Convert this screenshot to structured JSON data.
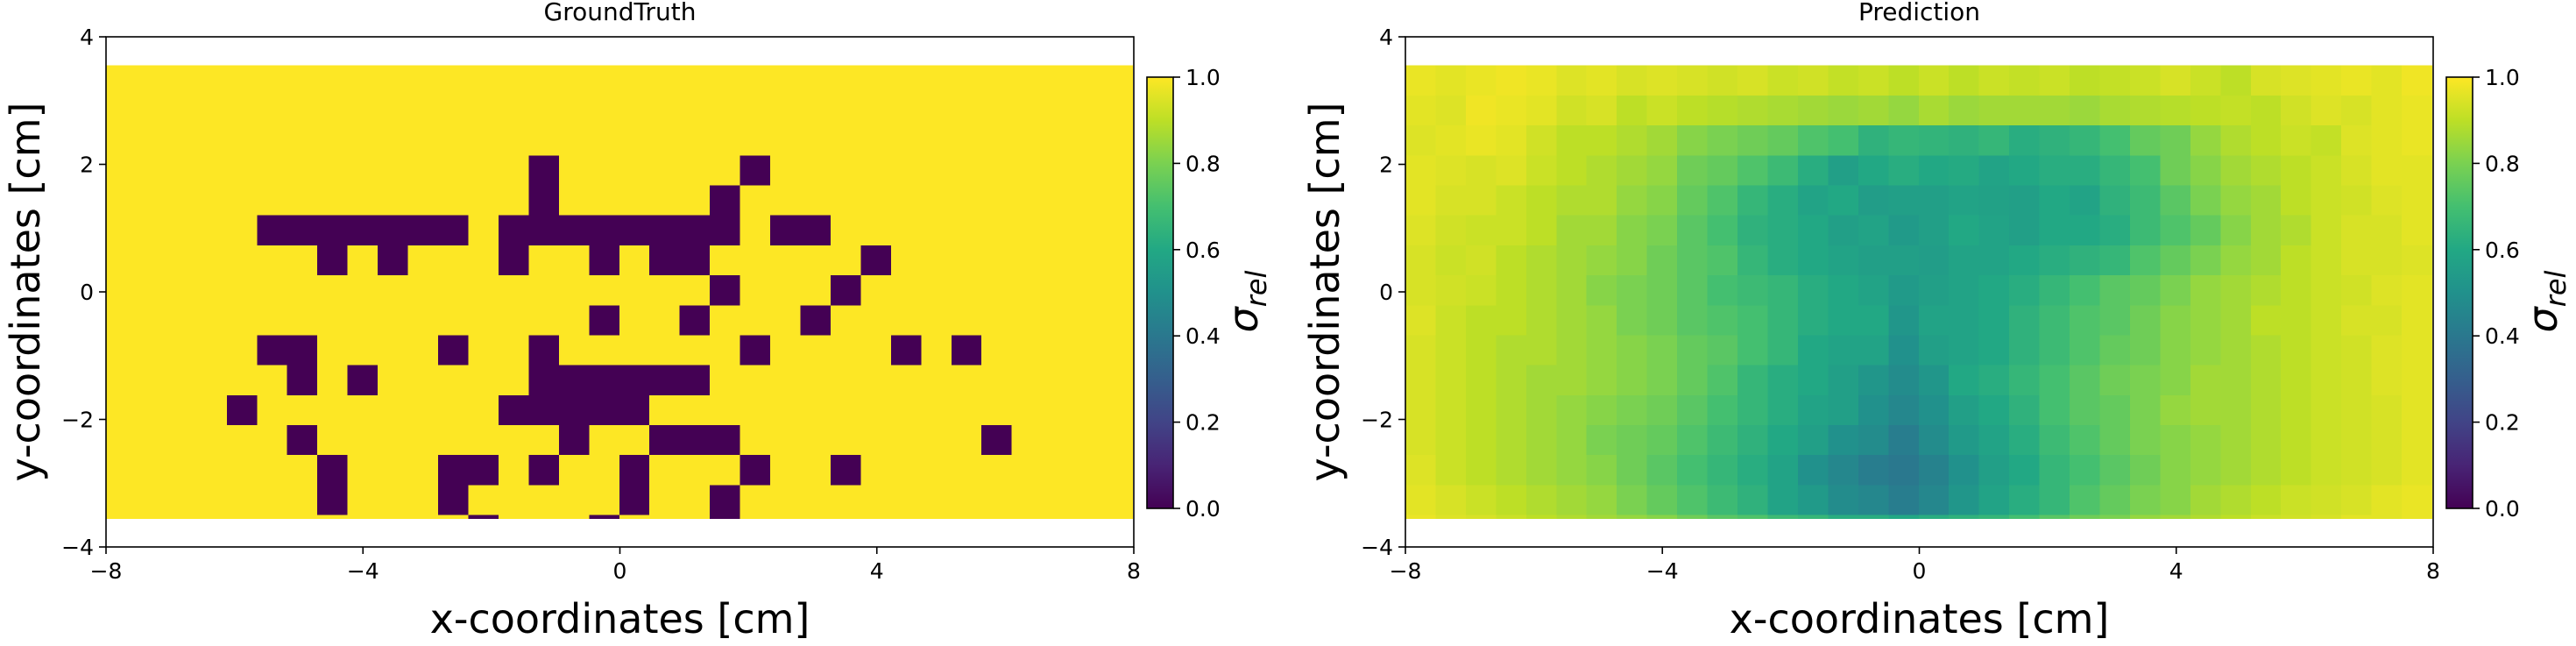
{
  "chart_data": [
    {
      "type": "heatmap",
      "title": "GroundTruth",
      "xlabel": "x-coordinates [cm]",
      "ylabel": "y-coordinates [cm]",
      "xlim": [
        -8,
        8
      ],
      "ylim": [
        -4,
        4
      ],
      "extent": [
        -8,
        8,
        -3.55,
        3.55
      ],
      "cell_size": 0.47,
      "xticks": [
        -8,
        -4,
        0,
        4,
        8
      ],
      "xtick_labels": [
        "−8",
        "−4",
        "0",
        "4",
        "8"
      ],
      "yticks": [
        -4,
        -2,
        0,
        2,
        4
      ],
      "ytick_labels": [
        "−4",
        "−2",
        "0",
        "2",
        "4"
      ],
      "colormap": "viridis",
      "colorbar": {
        "label": "σrel",
        "range": [
          0,
          1
        ],
        "ticks": [
          0.0,
          0.2,
          0.4,
          0.6,
          0.8,
          1.0
        ],
        "tick_labels": [
          "0.0",
          "0.2",
          "0.4",
          "0.6",
          "0.8",
          "1.0"
        ]
      },
      "values": [
        [
          1,
          1,
          1,
          1,
          1,
          1,
          1,
          1,
          1,
          1,
          1,
          1,
          1,
          1,
          1,
          1,
          1,
          1,
          1,
          1,
          1,
          1,
          1,
          1,
          1,
          1,
          1,
          1,
          1,
          1,
          1,
          1,
          1,
          1
        ],
        [
          1,
          1,
          1,
          1,
          1,
          1,
          1,
          1,
          1,
          1,
          1,
          1,
          1,
          1,
          1,
          1,
          1,
          1,
          1,
          1,
          1,
          1,
          1,
          1,
          1,
          1,
          1,
          1,
          1,
          1,
          1,
          1,
          1,
          1
        ],
        [
          1,
          1,
          1,
          1,
          1,
          1,
          1,
          1,
          1,
          1,
          1,
          1,
          1,
          1,
          1,
          1,
          1,
          1,
          1,
          1,
          1,
          1,
          1,
          1,
          1,
          1,
          1,
          1,
          1,
          1,
          1,
          1,
          1,
          1
        ],
        [
          1,
          1,
          1,
          1,
          1,
          1,
          1,
          1,
          1,
          1,
          1,
          1,
          1,
          1,
          0,
          1,
          1,
          1,
          1,
          1,
          1,
          0,
          1,
          1,
          1,
          1,
          1,
          1,
          1,
          1,
          1,
          1,
          1,
          1
        ],
        [
          1,
          1,
          1,
          1,
          1,
          1,
          1,
          1,
          1,
          1,
          1,
          1,
          1,
          1,
          0,
          1,
          1,
          1,
          1,
          1,
          0,
          1,
          1,
          1,
          1,
          1,
          1,
          1,
          1,
          1,
          1,
          1,
          1,
          1
        ],
        [
          1,
          1,
          1,
          1,
          1,
          0,
          0,
          0,
          0,
          0,
          0,
          0,
          1,
          0,
          0,
          0,
          0,
          0,
          0,
          0,
          0,
          1,
          0,
          0,
          1,
          1,
          1,
          1,
          1,
          1,
          1,
          1,
          1,
          1
        ],
        [
          1,
          1,
          1,
          1,
          1,
          1,
          1,
          0,
          1,
          0,
          1,
          1,
          1,
          0,
          1,
          1,
          0,
          1,
          0,
          0,
          1,
          1,
          1,
          1,
          1,
          0,
          1,
          1,
          1,
          1,
          1,
          1,
          1,
          1
        ],
        [
          1,
          1,
          1,
          1,
          1,
          1,
          1,
          1,
          1,
          1,
          1,
          1,
          1,
          1,
          1,
          1,
          1,
          1,
          1,
          1,
          0,
          1,
          1,
          1,
          0,
          1,
          1,
          1,
          1,
          1,
          1,
          1,
          1,
          1
        ],
        [
          1,
          1,
          1,
          1,
          1,
          1,
          1,
          1,
          1,
          1,
          1,
          1,
          1,
          1,
          1,
          1,
          0,
          1,
          1,
          0,
          1,
          1,
          1,
          0,
          1,
          1,
          1,
          1,
          1,
          1,
          1,
          1,
          1,
          1
        ],
        [
          1,
          1,
          1,
          1,
          1,
          0,
          0,
          1,
          1,
          1,
          1,
          0,
          1,
          1,
          0,
          1,
          1,
          1,
          1,
          1,
          1,
          0,
          1,
          1,
          1,
          1,
          0,
          1,
          0,
          1,
          1,
          1,
          1,
          1
        ],
        [
          1,
          1,
          1,
          1,
          1,
          1,
          0,
          1,
          0,
          1,
          1,
          1,
          1,
          1,
          0,
          0,
          0,
          0,
          0,
          0,
          1,
          1,
          1,
          1,
          1,
          1,
          1,
          1,
          1,
          1,
          1,
          1,
          1,
          1
        ],
        [
          1,
          1,
          1,
          1,
          0,
          1,
          1,
          1,
          1,
          1,
          1,
          1,
          1,
          0,
          0,
          0,
          0,
          0,
          1,
          1,
          1,
          1,
          1,
          1,
          1,
          1,
          1,
          1,
          1,
          1,
          1,
          1,
          1,
          1
        ],
        [
          1,
          1,
          1,
          1,
          1,
          1,
          0,
          1,
          1,
          1,
          1,
          1,
          1,
          1,
          1,
          0,
          1,
          1,
          0,
          0,
          0,
          1,
          1,
          1,
          1,
          1,
          1,
          1,
          1,
          0,
          1,
          1,
          1,
          1
        ],
        [
          1,
          1,
          1,
          1,
          1,
          1,
          1,
          0,
          1,
          1,
          1,
          0,
          0,
          1,
          0,
          1,
          1,
          0,
          1,
          1,
          1,
          0,
          1,
          1,
          0,
          1,
          1,
          1,
          1,
          1,
          1,
          1,
          1,
          1
        ],
        [
          1,
          1,
          1,
          1,
          1,
          1,
          1,
          0,
          1,
          1,
          1,
          0,
          1,
          1,
          1,
          1,
          1,
          0,
          1,
          1,
          0,
          1,
          1,
          1,
          1,
          1,
          1,
          1,
          1,
          1,
          1,
          1,
          1,
          1
        ],
        [
          1,
          1,
          1,
          1,
          1,
          1,
          1,
          1,
          1,
          1,
          1,
          1,
          0,
          1,
          1,
          1,
          0,
          1,
          1,
          1,
          0,
          1,
          1,
          1,
          1,
          1,
          1,
          1,
          1,
          1,
          1,
          1,
          1,
          1
        ],
        [
          1,
          1,
          1,
          1,
          1,
          1,
          1,
          1,
          1,
          1,
          1,
          1,
          1,
          1,
          1,
          1,
          1,
          1,
          1,
          1,
          1,
          1,
          1,
          1,
          1,
          1,
          1,
          1,
          1,
          1,
          1,
          1,
          1,
          1
        ]
      ]
    },
    {
      "type": "heatmap",
      "title": "Prediction",
      "xlabel": "x-coordinates [cm]",
      "ylabel": "y-coordinates [cm]",
      "xlim": [
        -8,
        8
      ],
      "ylim": [
        -4,
        4
      ],
      "extent": [
        -8,
        8,
        -3.55,
        3.55
      ],
      "cell_size": 0.47,
      "xticks": [
        -8,
        -4,
        0,
        4,
        8
      ],
      "xtick_labels": [
        "−8",
        "−4",
        "0",
        "4",
        "8"
      ],
      "yticks": [
        -4,
        -2,
        0,
        2,
        4
      ],
      "ytick_labels": [
        "−4",
        "−2",
        "0",
        "2",
        "4"
      ],
      "colormap": "viridis",
      "colorbar": {
        "label": "σrel",
        "range": [
          0,
          1
        ],
        "ticks": [
          0.0,
          0.2,
          0.4,
          0.6,
          0.8,
          1.0
        ],
        "tick_labels": [
          "0.0",
          "0.2",
          "0.4",
          "0.6",
          "0.8",
          "1.0"
        ]
      },
      "values": [
        [
          0.97,
          0.96,
          0.97,
          0.98,
          0.97,
          0.95,
          0.96,
          0.94,
          0.95,
          0.94,
          0.93,
          0.94,
          0.92,
          0.93,
          0.91,
          0.92,
          0.9,
          0.92,
          0.9,
          0.92,
          0.91,
          0.92,
          0.9,
          0.91,
          0.92,
          0.94,
          0.92,
          0.9,
          0.94,
          0.95,
          0.96,
          0.97,
          0.96,
          0.98
        ],
        [
          0.96,
          0.95,
          0.98,
          0.97,
          0.96,
          0.93,
          0.94,
          0.9,
          0.92,
          0.9,
          0.89,
          0.88,
          0.87,
          0.86,
          0.85,
          0.86,
          0.84,
          0.87,
          0.85,
          0.86,
          0.86,
          0.86,
          0.85,
          0.87,
          0.88,
          0.89,
          0.9,
          0.91,
          0.9,
          0.93,
          0.95,
          0.94,
          0.96,
          0.97
        ],
        [
          0.95,
          0.96,
          0.97,
          0.96,
          0.93,
          0.9,
          0.9,
          0.88,
          0.86,
          0.82,
          0.8,
          0.78,
          0.76,
          0.72,
          0.7,
          0.64,
          0.66,
          0.65,
          0.64,
          0.66,
          0.62,
          0.64,
          0.66,
          0.7,
          0.76,
          0.78,
          0.84,
          0.88,
          0.9,
          0.92,
          0.91,
          0.95,
          0.96,
          0.97
        ],
        [
          0.96,
          0.95,
          0.94,
          0.95,
          0.92,
          0.9,
          0.88,
          0.86,
          0.84,
          0.78,
          0.76,
          0.72,
          0.68,
          0.62,
          0.56,
          0.6,
          0.62,
          0.6,
          0.61,
          0.58,
          0.6,
          0.62,
          0.62,
          0.66,
          0.7,
          0.78,
          0.82,
          0.86,
          0.88,
          0.9,
          0.92,
          0.94,
          0.96,
          0.96
        ],
        [
          0.96,
          0.94,
          0.94,
          0.92,
          0.9,
          0.88,
          0.88,
          0.84,
          0.82,
          0.76,
          0.72,
          0.66,
          0.62,
          0.58,
          0.6,
          0.55,
          0.56,
          0.56,
          0.58,
          0.57,
          0.56,
          0.6,
          0.58,
          0.64,
          0.68,
          0.74,
          0.8,
          0.84,
          0.86,
          0.9,
          0.92,
          0.93,
          0.95,
          0.96
        ],
        [
          0.95,
          0.93,
          0.92,
          0.92,
          0.9,
          0.86,
          0.86,
          0.82,
          0.8,
          0.74,
          0.7,
          0.64,
          0.62,
          0.6,
          0.56,
          0.58,
          0.54,
          0.56,
          0.6,
          0.58,
          0.56,
          0.6,
          0.6,
          0.62,
          0.68,
          0.72,
          0.76,
          0.82,
          0.86,
          0.88,
          0.92,
          0.94,
          0.94,
          0.96
        ],
        [
          0.94,
          0.92,
          0.93,
          0.9,
          0.88,
          0.86,
          0.84,
          0.82,
          0.78,
          0.74,
          0.72,
          0.66,
          0.62,
          0.6,
          0.58,
          0.56,
          0.56,
          0.55,
          0.58,
          0.58,
          0.6,
          0.62,
          0.64,
          0.66,
          0.72,
          0.76,
          0.8,
          0.84,
          0.86,
          0.9,
          0.92,
          0.94,
          0.94,
          0.95
        ],
        [
          0.94,
          0.93,
          0.92,
          0.9,
          0.88,
          0.86,
          0.82,
          0.8,
          0.78,
          0.74,
          0.7,
          0.68,
          0.66,
          0.62,
          0.6,
          0.58,
          0.54,
          0.56,
          0.58,
          0.6,
          0.62,
          0.66,
          0.7,
          0.74,
          0.76,
          0.8,
          0.84,
          0.86,
          0.88,
          0.9,
          0.92,
          0.93,
          0.95,
          0.96
        ],
        [
          0.95,
          0.92,
          0.9,
          0.9,
          0.88,
          0.86,
          0.84,
          0.8,
          0.78,
          0.74,
          0.72,
          0.7,
          0.66,
          0.62,
          0.6,
          0.6,
          0.52,
          0.58,
          0.58,
          0.6,
          0.64,
          0.68,
          0.72,
          0.74,
          0.78,
          0.82,
          0.84,
          0.86,
          0.9,
          0.9,
          0.92,
          0.94,
          0.94,
          0.96
        ],
        [
          0.94,
          0.92,
          0.9,
          0.88,
          0.88,
          0.86,
          0.84,
          0.82,
          0.8,
          0.76,
          0.74,
          0.7,
          0.66,
          0.6,
          0.58,
          0.58,
          0.5,
          0.56,
          0.58,
          0.6,
          0.64,
          0.68,
          0.72,
          0.76,
          0.78,
          0.82,
          0.84,
          0.86,
          0.88,
          0.9,
          0.92,
          0.93,
          0.95,
          0.96
        ],
        [
          0.94,
          0.92,
          0.9,
          0.88,
          0.86,
          0.86,
          0.84,
          0.82,
          0.8,
          0.76,
          0.72,
          0.66,
          0.62,
          0.6,
          0.56,
          0.52,
          0.48,
          0.52,
          0.6,
          0.62,
          0.66,
          0.7,
          0.74,
          0.78,
          0.8,
          0.82,
          0.86,
          0.86,
          0.88,
          0.9,
          0.92,
          0.93,
          0.95,
          0.96
        ],
        [
          0.94,
          0.92,
          0.9,
          0.88,
          0.86,
          0.84,
          0.82,
          0.8,
          0.78,
          0.74,
          0.7,
          0.66,
          0.62,
          0.58,
          0.56,
          0.5,
          0.46,
          0.5,
          0.56,
          0.6,
          0.64,
          0.7,
          0.74,
          0.76,
          0.8,
          0.84,
          0.86,
          0.86,
          0.88,
          0.9,
          0.92,
          0.93,
          0.94,
          0.96
        ],
        [
          0.94,
          0.92,
          0.9,
          0.88,
          0.86,
          0.84,
          0.8,
          0.78,
          0.76,
          0.72,
          0.68,
          0.64,
          0.6,
          0.56,
          0.5,
          0.48,
          0.42,
          0.48,
          0.54,
          0.58,
          0.62,
          0.68,
          0.72,
          0.76,
          0.8,
          0.82,
          0.84,
          0.86,
          0.88,
          0.9,
          0.92,
          0.93,
          0.94,
          0.96
        ],
        [
          0.95,
          0.92,
          0.9,
          0.88,
          0.86,
          0.84,
          0.82,
          0.78,
          0.74,
          0.7,
          0.66,
          0.62,
          0.58,
          0.5,
          0.46,
          0.42,
          0.4,
          0.44,
          0.5,
          0.56,
          0.6,
          0.66,
          0.7,
          0.74,
          0.78,
          0.82,
          0.84,
          0.86,
          0.88,
          0.9,
          0.92,
          0.93,
          0.94,
          0.96
        ],
        [
          0.96,
          0.94,
          0.92,
          0.9,
          0.88,
          0.86,
          0.84,
          0.8,
          0.76,
          0.72,
          0.68,
          0.64,
          0.58,
          0.54,
          0.48,
          0.46,
          0.42,
          0.46,
          0.52,
          0.58,
          0.62,
          0.66,
          0.72,
          0.76,
          0.8,
          0.82,
          0.86,
          0.88,
          0.9,
          0.92,
          0.93,
          0.94,
          0.96,
          0.97
        ],
        [
          0.97,
          0.95,
          0.94,
          0.92,
          0.9,
          0.88,
          0.86,
          0.84,
          0.82,
          0.78,
          0.74,
          0.72,
          0.68,
          0.66,
          0.62,
          0.62,
          0.6,
          0.62,
          0.64,
          0.66,
          0.7,
          0.74,
          0.78,
          0.8,
          0.84,
          0.86,
          0.88,
          0.9,
          0.92,
          0.93,
          0.94,
          0.96,
          0.96,
          0.97
        ],
        [
          0.98,
          0.97,
          0.96,
          0.95,
          0.94,
          0.92,
          0.9,
          0.9,
          0.88,
          0.86,
          0.84,
          0.84,
          0.82,
          0.8,
          0.8,
          0.8,
          0.78,
          0.8,
          0.82,
          0.84,
          0.86,
          0.86,
          0.88,
          0.9,
          0.9,
          0.92,
          0.93,
          0.94,
          0.95,
          0.96,
          0.96,
          0.97,
          0.97,
          0.98
        ]
      ]
    }
  ]
}
